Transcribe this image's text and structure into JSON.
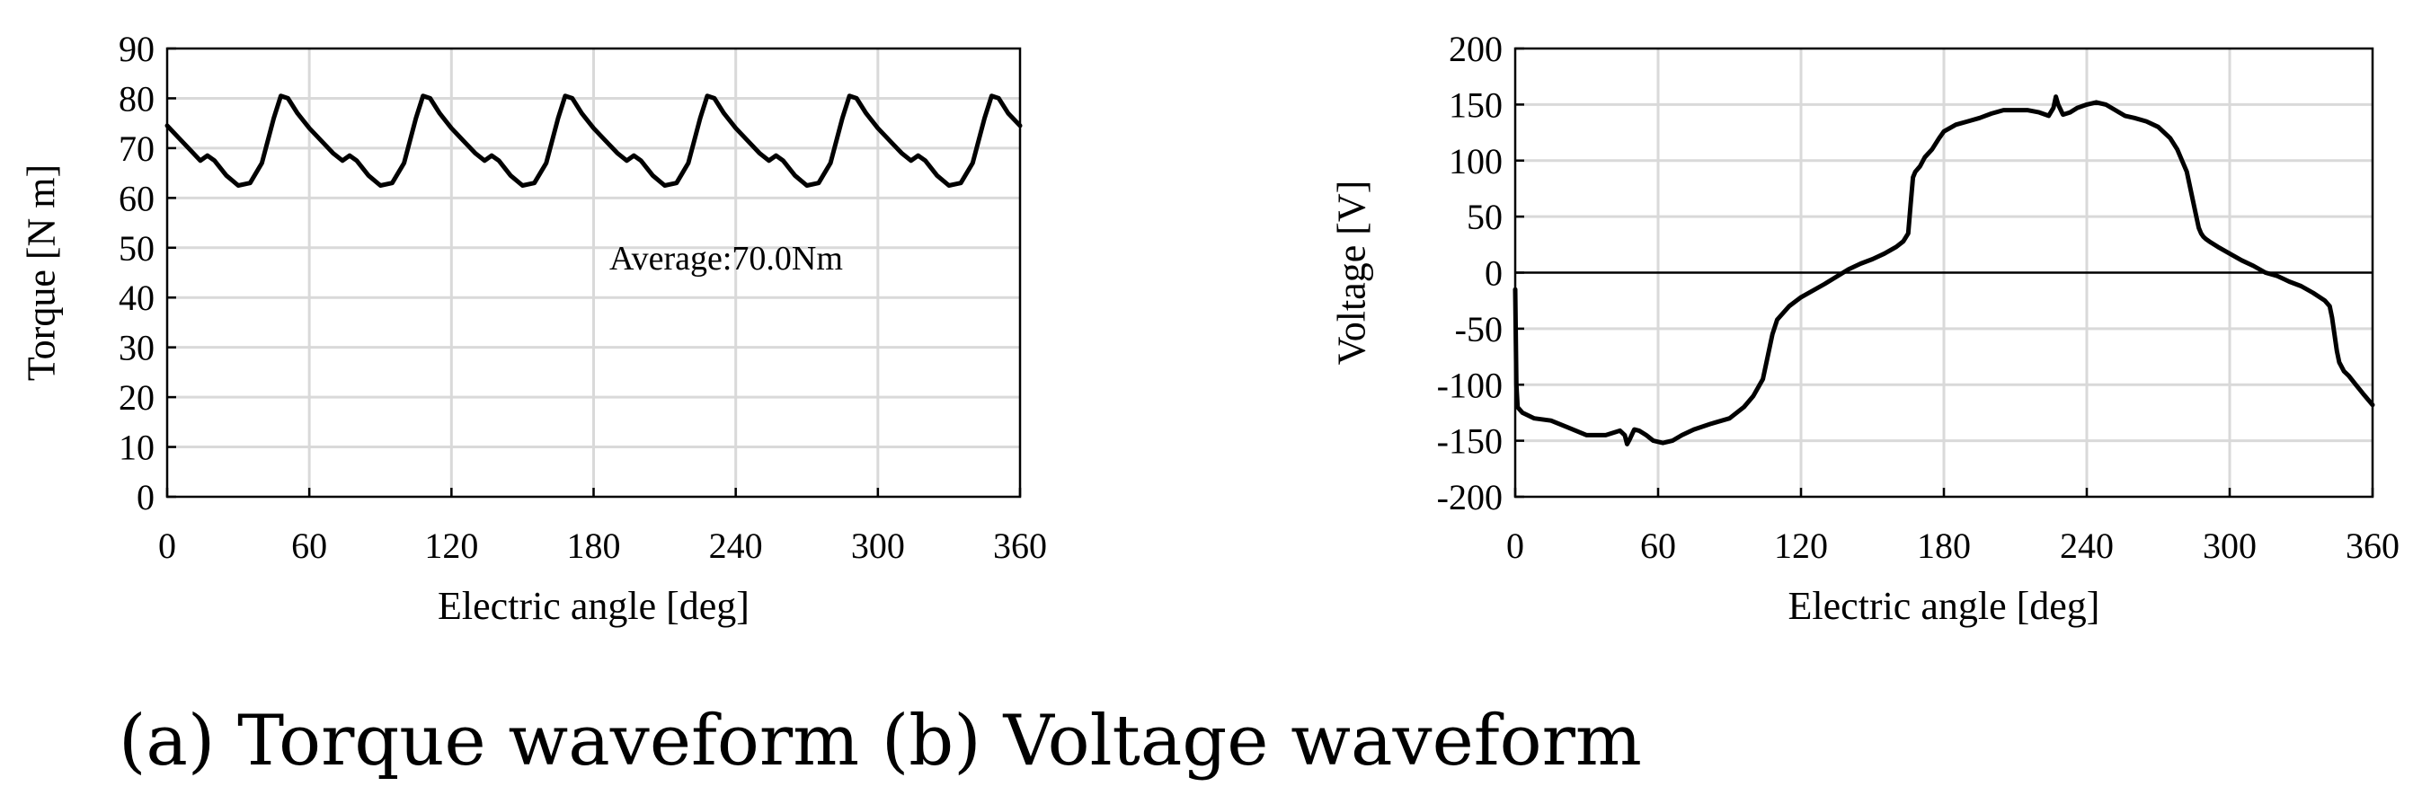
{
  "caption": "(a) Torque waveform (b) Voltage waveform",
  "chart_data": [
    {
      "type": "line",
      "id": "torque",
      "title": "",
      "xlabel": "Electric angle [deg]",
      "ylabel": "Torque [N m]",
      "xlim": [
        0,
        360
      ],
      "ylim": [
        0,
        90
      ],
      "xticks": [
        0,
        60,
        120,
        180,
        240,
        300,
        360
      ],
      "yticks": [
        0,
        10,
        20,
        30,
        40,
        50,
        60,
        70,
        80,
        90
      ],
      "grid": true,
      "annotation": "Average:70.0Nm",
      "series": [
        {
          "name": "Torque",
          "color": "#000000",
          "x": [
            0,
            5,
            10,
            14,
            17,
            20,
            25,
            30,
            35,
            40,
            45,
            48,
            51,
            55,
            60,
            66,
            70,
            74,
            77,
            80,
            85,
            90,
            95,
            100,
            105,
            108,
            111,
            115,
            120,
            126,
            130,
            134,
            137,
            140,
            145,
            150,
            155,
            160,
            165,
            168,
            171,
            175,
            180,
            186,
            190,
            194,
            197,
            200,
            205,
            210,
            215,
            220,
            225,
            228,
            231,
            235,
            240,
            246,
            250,
            254,
            257,
            260,
            265,
            270,
            275,
            280,
            285,
            288,
            291,
            295,
            300,
            306,
            310,
            314,
            317,
            320,
            325,
            330,
            335,
            340,
            345,
            348,
            351,
            355,
            360
          ],
          "values": [
            74.5,
            72,
            69.5,
            67.5,
            68.5,
            67.5,
            64.5,
            62.5,
            63,
            67,
            76,
            80.5,
            80,
            77,
            74,
            71,
            69,
            67.5,
            68.5,
            67.5,
            64.5,
            62.5,
            63,
            67,
            76,
            80.5,
            80,
            77,
            74,
            71,
            69,
            67.5,
            68.5,
            67.5,
            64.5,
            62.5,
            63,
            67,
            76,
            80.5,
            80,
            77,
            74,
            71,
            69,
            67.5,
            68.5,
            67.5,
            64.5,
            62.5,
            63,
            67,
            76,
            80.5,
            80,
            77,
            74,
            71,
            69,
            67.5,
            68.5,
            67.5,
            64.5,
            62.5,
            63,
            67,
            76,
            80.5,
            80,
            77,
            74,
            71,
            69,
            67.5,
            68.5,
            67.5,
            64.5,
            62.5,
            63,
            67,
            76,
            80.5,
            80,
            77,
            74.5
          ]
        }
      ]
    },
    {
      "type": "line",
      "id": "voltage",
      "title": "",
      "xlabel": "Electric angle [deg]",
      "ylabel": "Voltage [V]",
      "xlim": [
        0,
        360
      ],
      "ylim": [
        -200,
        200
      ],
      "xticks": [
        0,
        60,
        120,
        180,
        240,
        300,
        360
      ],
      "yticks": [
        -200,
        -150,
        -100,
        -50,
        0,
        50,
        100,
        150,
        200
      ],
      "grid": true,
      "series": [
        {
          "name": "Voltage",
          "color": "#000000",
          "x": [
            0,
            0.5,
            1,
            3,
            8,
            15,
            22,
            30,
            38,
            44,
            46,
            47,
            48,
            50,
            52,
            55,
            58,
            62,
            66,
            70,
            75,
            82,
            90,
            96,
            100,
            104,
            106,
            108,
            110,
            115,
            120,
            130,
            140,
            145,
            150,
            155,
            160,
            163,
            165,
            166,
            167,
            168,
            170,
            172,
            175,
            178,
            180,
            185,
            190,
            195,
            200,
            205,
            210,
            215,
            220,
            224,
            226,
            227,
            228,
            230,
            233,
            236,
            240,
            244,
            248,
            252,
            256,
            260,
            265,
            270,
            275,
            278,
            280,
            282,
            284,
            286,
            287,
            288,
            289,
            290,
            292,
            295,
            300,
            305,
            310,
            315,
            320,
            325,
            330,
            335,
            340,
            342,
            343,
            344,
            345,
            346,
            348,
            350,
            353,
            356,
            360
          ],
          "values": [
            -15,
            -100,
            -120,
            -125,
            -130,
            -132,
            -138,
            -145,
            -145,
            -141,
            -145,
            -153,
            -149,
            -140,
            -141,
            -145,
            -150,
            -152,
            -150,
            -145,
            -140,
            -135,
            -130,
            -120,
            -110,
            -95,
            -75,
            -55,
            -42,
            -30,
            -22,
            -10,
            3,
            8,
            12,
            17,
            23,
            28,
            35,
            60,
            85,
            90,
            95,
            103,
            110,
            120,
            126,
            132,
            135,
            138,
            142,
            145,
            145,
            145,
            143,
            140,
            147,
            157,
            150,
            141,
            143,
            147,
            150,
            152,
            150,
            145,
            140,
            138,
            135,
            130,
            120,
            110,
            100,
            90,
            70,
            50,
            40,
            35,
            32,
            30,
            27,
            23,
            17,
            11,
            6,
            0,
            -3,
            -8,
            -12,
            -18,
            -25,
            -30,
            -40,
            -55,
            -70,
            -80,
            -88,
            -92,
            -100,
            -108,
            -118
          ]
        }
      ]
    }
  ]
}
